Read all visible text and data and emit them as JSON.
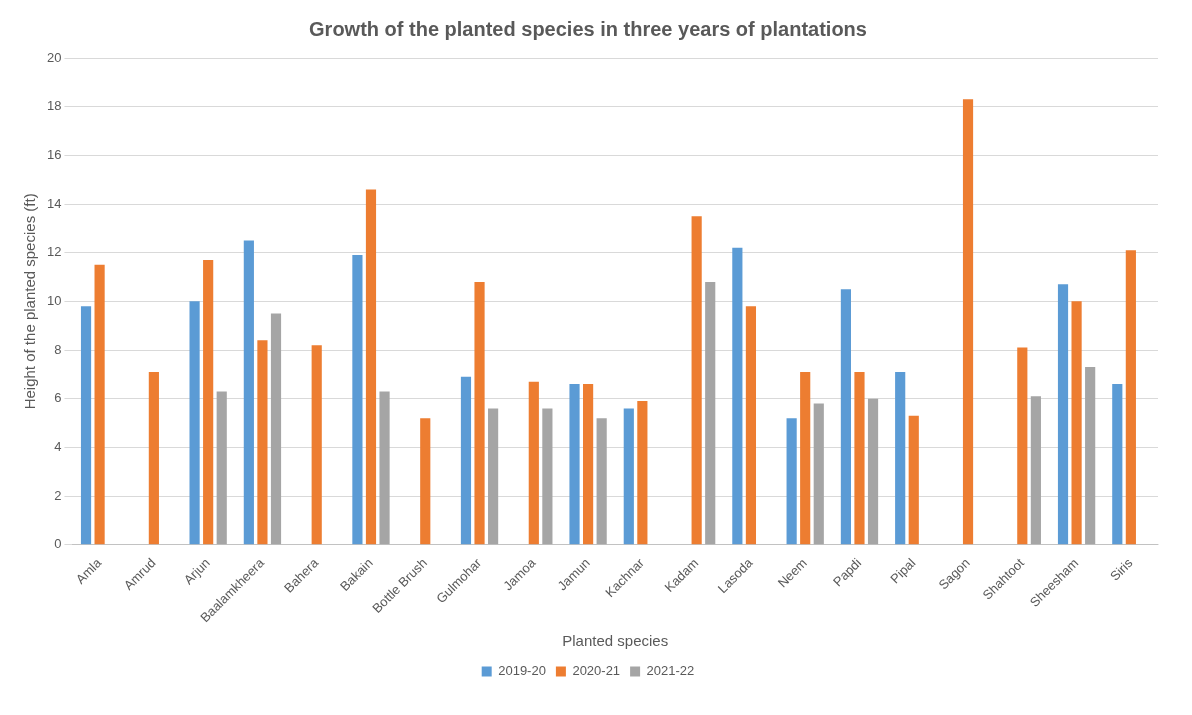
{
  "chart_data": {
    "type": "bar",
    "title": "Growth of the planted species in three years of plantations",
    "xlabel": "Planted species",
    "ylabel": "Height of the planted species (ft)",
    "categories": [
      "Amla",
      "Amrud",
      "Arjun",
      "Baalamkheera",
      "Bahera",
      "Bakain",
      "Bottle Brush",
      "Gulmohar",
      "Jamoa",
      "Jamun",
      "Kachnar",
      "Kadam",
      "Lasoda",
      "Neem",
      "Papdi",
      "Pipal",
      "Sagon",
      "Shahtoot",
      "Sheesham",
      "Siris"
    ],
    "series": [
      {
        "name": "2019-20",
        "color": "#5b9bd5",
        "values": [
          9.8,
          null,
          10.0,
          12.5,
          null,
          11.9,
          null,
          6.9,
          null,
          6.6,
          5.6,
          null,
          12.2,
          5.2,
          10.5,
          7.1,
          null,
          null,
          10.7,
          6.6
        ]
      },
      {
        "name": "2020-21",
        "color": "#ed7d31",
        "values": [
          11.5,
          7.1,
          11.7,
          8.4,
          8.2,
          14.6,
          5.2,
          10.8,
          6.7,
          6.6,
          5.9,
          13.5,
          9.8,
          7.1,
          7.1,
          5.3,
          18.3,
          8.1,
          10.0,
          12.1
        ]
      },
      {
        "name": "2021-22",
        "color": "#a5a5a5",
        "values": [
          null,
          null,
          6.3,
          9.5,
          null,
          6.3,
          null,
          5.6,
          5.6,
          5.2,
          null,
          10.8,
          null,
          5.8,
          6.0,
          null,
          null,
          6.1,
          7.3,
          null
        ]
      }
    ],
    "ylim": [
      0,
      20
    ],
    "yticks": [
      0,
      2,
      4,
      6,
      8,
      10,
      12,
      14,
      16,
      18,
      20
    ],
    "grid": "y",
    "legend": "bottom"
  }
}
